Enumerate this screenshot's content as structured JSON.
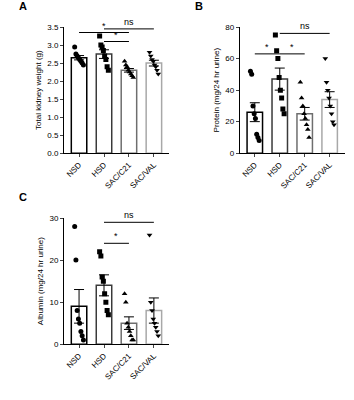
{
  "chart_data": [
    {
      "type": "bar",
      "title": "A",
      "y_label": "Total kidney weight (g)",
      "categories": [
        "NSD",
        "HSD",
        "SAC/C21",
        "SAC/VAL"
      ],
      "values": [
        2.65,
        2.75,
        2.3,
        2.5
      ],
      "errors": [
        0.06,
        0.12,
        0.05,
        0.08
      ],
      "points": [
        [
          2.95,
          2.75,
          2.7,
          2.65,
          2.6,
          2.55,
          2.5,
          2.45
        ],
        [
          3.25,
          3.0,
          2.95,
          2.85,
          2.7,
          2.6,
          2.4,
          2.3
        ],
        [
          2.55,
          2.45,
          2.4,
          2.3,
          2.25,
          2.2,
          2.15,
          2.1
        ],
        [
          2.8,
          2.7,
          2.6,
          2.55,
          2.45,
          2.4,
          2.3,
          2.2
        ]
      ],
      "colors": [
        "#000000",
        "#3a3a3a",
        "#6e6e6e",
        "#a8a8a8"
      ],
      "ylim": [
        0,
        3.5
      ],
      "yticks": [
        {
          "value": 0,
          "label": "0.0"
        },
        {
          "value": 0.5,
          "label": "0.5"
        },
        {
          "value": 1,
          "label": "1.0"
        },
        {
          "value": 1.5,
          "label": "1.5"
        },
        {
          "value": 2,
          "label": "2.0"
        },
        {
          "value": 2.5,
          "label": "2.5"
        },
        {
          "value": 3,
          "label": "3.0"
        },
        {
          "value": 3.5,
          "label": "3.5"
        }
      ],
      "comparisons": [
        {
          "from": "NSD",
          "to": "SAC/C21",
          "label": "*",
          "y": 3.35
        },
        {
          "from": "HSD",
          "to": "SAC/C21",
          "label": "*",
          "y": 3.1
        },
        {
          "from": "HSD",
          "to": "SAC/VAL",
          "label": "ns",
          "y": 3.45
        }
      ]
    },
    {
      "type": "bar",
      "title": "B",
      "y_label": "Protein (mg/24 hr urine)",
      "categories": [
        "NSD",
        "HSD",
        "SAC/C21",
        "SAC/VAL"
      ],
      "values": [
        26,
        47,
        25,
        34
      ],
      "errors": [
        6,
        7,
        4,
        5
      ],
      "points": [
        [
          52,
          50,
          30,
          25,
          22,
          12,
          10,
          8
        ],
        [
          75,
          65,
          60,
          48,
          40,
          35,
          28,
          25
        ],
        [
          45,
          35,
          30,
          25,
          22,
          18,
          15,
          10
        ],
        [
          60,
          45,
          40,
          35,
          30,
          25,
          20,
          18
        ]
      ],
      "colors": [
        "#000000",
        "#3a3a3a",
        "#6e6e6e",
        "#a8a8a8"
      ],
      "ylim": [
        0,
        80
      ],
      "yticks": [
        0,
        20,
        40,
        60,
        80
      ],
      "comparisons": [
        {
          "from": "NSD",
          "to": "HSD",
          "label": "*",
          "y": 63
        },
        {
          "from": "HSD",
          "to": "SAC/C21",
          "label": "*",
          "y": 63
        },
        {
          "from": "HSD",
          "to": "SAC/VAL",
          "label": "ns",
          "y": 76
        }
      ]
    },
    {
      "type": "bar",
      "title": "C",
      "y_label": "Albumin (mg/24 hr urine)",
      "categories": [
        "NSD",
        "HSD",
        "SAC/C21",
        "SAC/VAL"
      ],
      "values": [
        9,
        14,
        5,
        8
      ],
      "errors": [
        4,
        2.5,
        1.5,
        3
      ],
      "points": [
        [
          28,
          20,
          8,
          6,
          5,
          3,
          2,
          1
        ],
        [
          22,
          21,
          16,
          15,
          12,
          10,
          8,
          7
        ],
        [
          12,
          10,
          5,
          4,
          3,
          2,
          1,
          1
        ],
        [
          26,
          10,
          8,
          6,
          5,
          4,
          3,
          2
        ]
      ],
      "colors": [
        "#000000",
        "#3a3a3a",
        "#6e6e6e",
        "#a8a8a8"
      ],
      "ylim": [
        0,
        30
      ],
      "yticks": [
        0,
        10,
        20,
        30
      ],
      "comparisons": [
        {
          "from": "HSD",
          "to": "SAC/C21",
          "label": "*",
          "y": 24
        },
        {
          "from": "HSD",
          "to": "SAC/VAL",
          "label": "ns",
          "y": 29
        }
      ]
    }
  ]
}
